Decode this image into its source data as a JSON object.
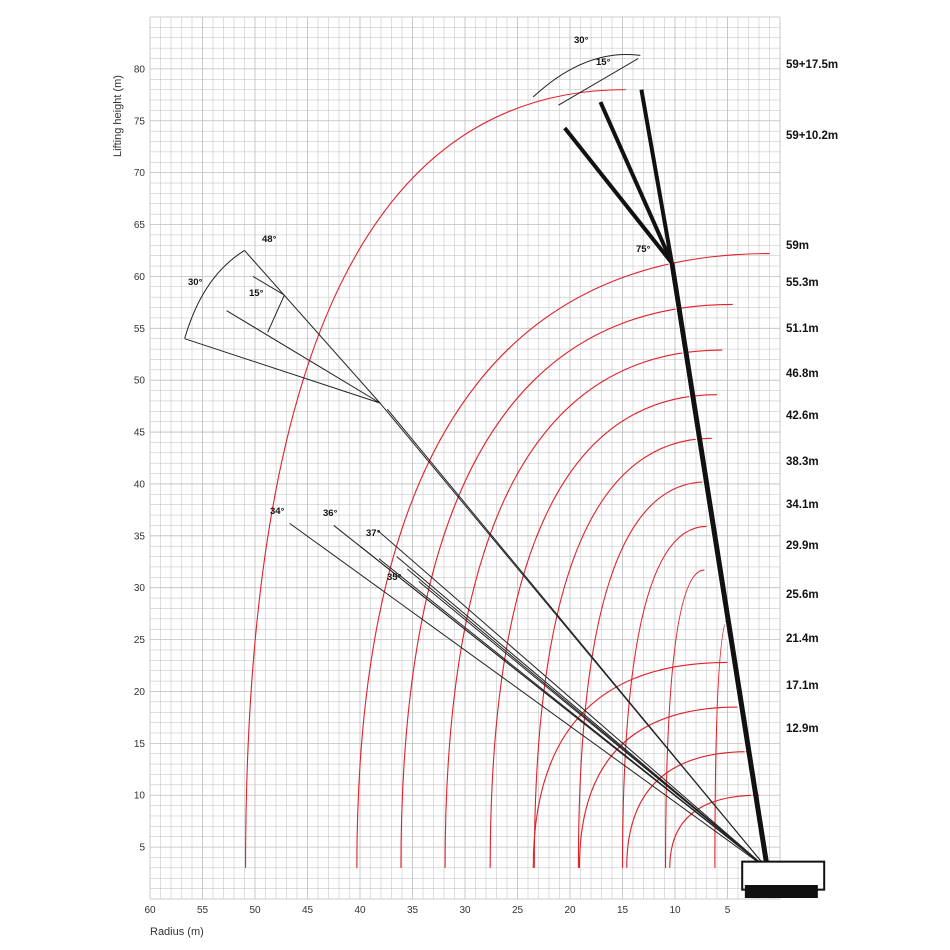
{
  "chart_data": {
    "type": "line",
    "title": "",
    "xlabel": "Radius (m)",
    "ylabel": "Lifting height (m)",
    "xlim": [
      60,
      0
    ],
    "ylim": [
      0,
      85
    ],
    "x_reversed": true,
    "grid": true,
    "grid_step": 1,
    "x_ticks": [
      "60",
      "55",
      "50",
      "45",
      "40",
      "35",
      "30",
      "25",
      "20",
      "15",
      "10",
      "5"
    ],
    "y_ticks": [
      "5",
      "10",
      "15",
      "20",
      "25",
      "30",
      "35",
      "40",
      "45",
      "50",
      "55",
      "60",
      "65",
      "70",
      "75",
      "80"
    ],
    "colors": {
      "arc": "#e0202a",
      "grid": "#bdbdbd",
      "line": "#222222",
      "boom": "#111111"
    },
    "boom_lengths": [
      "59+17.5m",
      "59+10.2m",
      "59m",
      "55.3m",
      "51.1m",
      "46.8m",
      "42.6m",
      "38.3m",
      "34.1m",
      "29.9m",
      "25.6m",
      "21.4m",
      "17.1m",
      "12.9m"
    ],
    "arcs": [
      {
        "label": "59+17.5m",
        "min_radius": 50.9,
        "max_radius": 14.7,
        "height_at_max": 78
      },
      {
        "label": "59m",
        "min_radius": 40.3,
        "max_radius": 1,
        "height_at_max": 62.2
      },
      {
        "label": "55.3m",
        "min_radius": 36.1,
        "max_radius": 4.5,
        "height_at_max": 57.3
      },
      {
        "label": "51.1m",
        "min_radius": 31.9,
        "max_radius": 5.5,
        "height_at_max": 52.9
      },
      {
        "label": "46.8m",
        "min_radius": 27.6,
        "max_radius": 6,
        "height_at_max": 48.6
      },
      {
        "label": "42.6m",
        "min_radius": 23.4,
        "max_radius": 6.5,
        "height_at_max": 44.4
      },
      {
        "label": "38.3m",
        "min_radius": 19.2,
        "max_radius": 7,
        "height_at_max": 40.2
      },
      {
        "label": "34.1m",
        "min_radius": 15,
        "max_radius": 7,
        "height_at_max": 35.9
      },
      {
        "label": "29.9m",
        "min_radius": 10.9,
        "max_radius": 7.2,
        "height_at_max": 31.7
      }
    ],
    "jib_angles": [
      "30°",
      "15°",
      "48°",
      "30°",
      "15°",
      "75°",
      "34°",
      "36°",
      "37°",
      "35°"
    ],
    "pivot": {
      "x": 1.2,
      "y": 2.9
    },
    "boom_tip_59m": {
      "x": 10.3,
      "y": 61.3
    }
  }
}
